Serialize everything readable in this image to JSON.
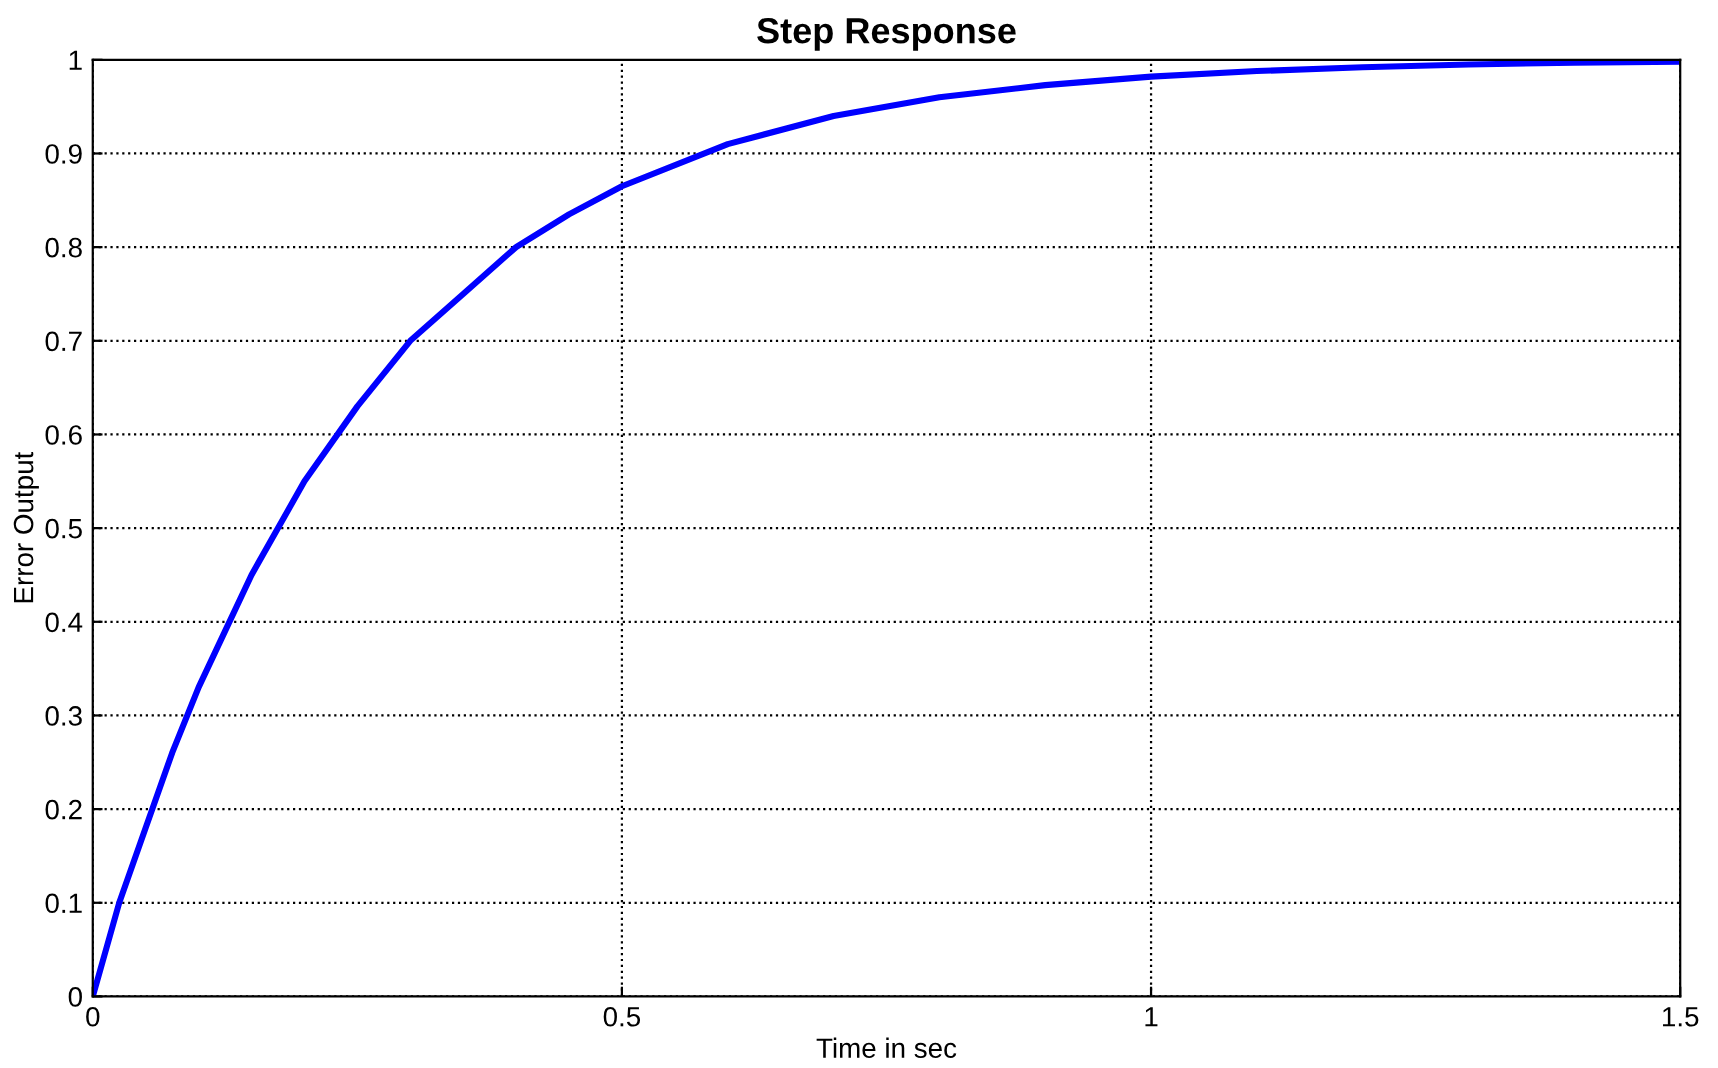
{
  "chart_data": {
    "type": "line",
    "title": "Step Response",
    "xlabel": "Time in sec",
    "ylabel": "Error Output",
    "x": [
      0,
      0.025,
      0.05,
      0.075,
      0.1,
      0.125,
      0.15,
      0.2,
      0.25,
      0.3,
      0.35,
      0.4,
      0.45,
      0.5,
      0.6,
      0.7,
      0.8,
      0.9,
      1.0,
      1.1,
      1.2,
      1.3,
      1.4,
      1.5
    ],
    "series": [
      {
        "color": "#0000ff",
        "values": [
          0,
          0.1,
          0.18,
          0.26,
          0.33,
          0.39,
          0.45,
          0.55,
          0.63,
          0.7,
          0.75,
          0.8,
          0.835,
          0.865,
          0.91,
          0.94,
          0.96,
          0.973,
          0.982,
          0.988,
          0.992,
          0.995,
          0.997,
          0.998
        ]
      }
    ],
    "xlim": [
      0,
      1.5
    ],
    "xticks": [
      0,
      0.5,
      1,
      1.5
    ],
    "ylim": [
      0,
      1
    ],
    "yticks": [
      0,
      0.1,
      0.2,
      0.3,
      0.4,
      0.5,
      0.6,
      0.7,
      0.8,
      0.9,
      1
    ],
    "grid": true,
    "line_style": "solid",
    "marker": "none"
  }
}
